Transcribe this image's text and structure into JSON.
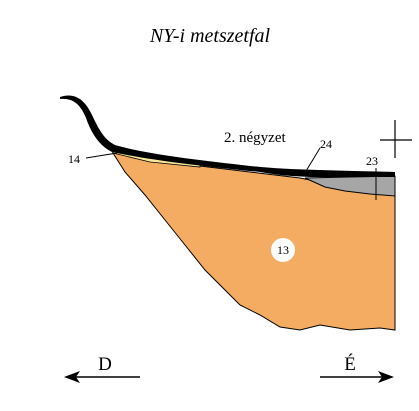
{
  "title": "NY-i metszetfal",
  "area_label": "2. négyzet",
  "layers": {
    "a": "14",
    "b": "24",
    "c": "23",
    "d": "13"
  },
  "directions": {
    "left": "D",
    "right": "É"
  }
}
